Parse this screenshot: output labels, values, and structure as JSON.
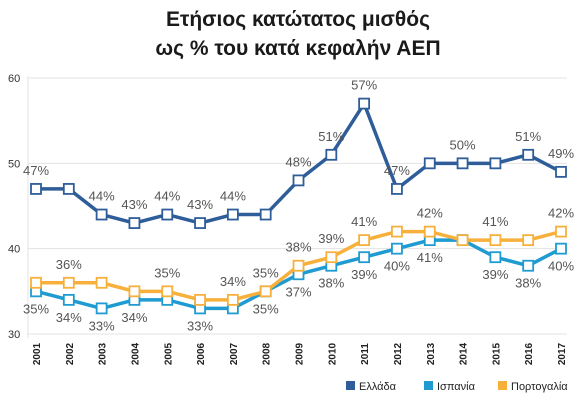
{
  "chart_data": {
    "type": "line",
    "title_lines": [
      "Ετήσιος κατώτατος μισθός",
      "ως % του κατά κεφαλήν ΑΕΠ"
    ],
    "categories": [
      "2001",
      "2002",
      "2003",
      "2004",
      "2005",
      "2006",
      "2007",
      "2008",
      "2009",
      "2010",
      "2011",
      "2012",
      "2013",
      "2014",
      "2015",
      "2016",
      "2017"
    ],
    "ylim": [
      30,
      60
    ],
    "yticks": [
      30,
      40,
      50,
      60
    ],
    "grid": "horizontal",
    "legend_position": "bottom-right",
    "series": [
      {
        "name": "Ελλάδα",
        "color": "#2e5d9a",
        "values": [
          47,
          47,
          44,
          43,
          44,
          43,
          44,
          44,
          48,
          51,
          57,
          47,
          50,
          50,
          50,
          51,
          49
        ],
        "labels": [
          "47%",
          "",
          "44%",
          "43%",
          "44%",
          "43%",
          "44%",
          "",
          "48%",
          "51%",
          "57%",
          "47%",
          "",
          "50%",
          "",
          "51%",
          "49%"
        ]
      },
      {
        "name": "Ισπανία",
        "color": "#1f9bd1",
        "values": [
          35,
          34,
          33,
          34,
          34,
          33,
          33,
          35,
          37,
          38,
          39,
          40,
          41,
          41,
          39,
          38,
          40
        ],
        "labels": [
          "35%",
          "34%",
          "33%",
          "34%",
          "",
          "33%",
          "",
          "35%",
          "37%",
          "38%",
          "39%",
          "40%",
          "41%",
          "",
          "39%",
          "38%",
          "40%"
        ]
      },
      {
        "name": "Πορτογαλία",
        "color": "#f7b03c",
        "values": [
          36,
          36,
          36,
          35,
          35,
          34,
          34,
          35,
          38,
          39,
          41,
          42,
          42,
          41,
          41,
          41,
          42
        ],
        "labels": [
          "",
          "36%",
          "",
          "",
          "35%",
          "",
          "34%",
          "35%",
          "38%",
          "39%",
          "41%",
          "",
          "42%",
          "",
          "41%",
          "",
          "42%"
        ]
      }
    ]
  }
}
